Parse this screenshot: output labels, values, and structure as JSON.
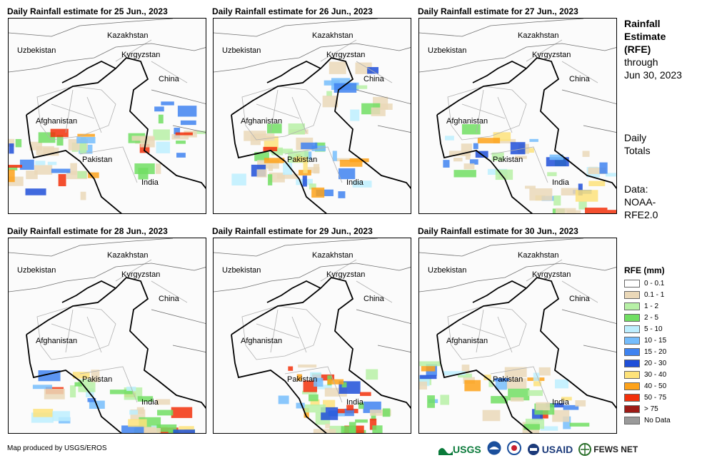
{
  "panels": [
    {
      "title": "Daily Rainfall estimate for 25 Jun., 2023",
      "labels": [
        "Kazakhstan",
        "Uzbekistan",
        "Kyrgyzstan",
        "China",
        "Afghanistan",
        "Pakistan",
        "India"
      ]
    },
    {
      "title": "Daily Rainfall estimate for 26 Jun., 2023",
      "labels": [
        "Kazakhstan",
        "Uzbekistan",
        "Kyrgyzstan",
        "China",
        "Afghanistan",
        "Pakistan",
        "India"
      ]
    },
    {
      "title": "Daily Rainfall estimate for 27 Jun., 2023",
      "labels": [
        "Kazakhstan",
        "Uzbekistan",
        "Kyrgyzstan",
        "China",
        "Afghanistan",
        "Pakistan",
        "India"
      ]
    },
    {
      "title": "Daily Rainfall estimate for 28 Jun., 2023",
      "labels": [
        "Kazakhstan",
        "Uzbekistan",
        "Kyrgyzstan",
        "China",
        "Afghanistan",
        "Pakistan",
        "India"
      ]
    },
    {
      "title": "Daily Rainfall estimate for 29 Jun., 2023",
      "labels": [
        "Kazakhstan",
        "Uzbekistan",
        "Kyrgyzstan",
        "China",
        "Afghanistan",
        "Pakistan",
        "India"
      ]
    },
    {
      "title": "Daily Rainfall estimate for 30 Jun., 2023",
      "labels": [
        "Kazakhstan",
        "Uzbekistan",
        "Kyrgyzstan",
        "China",
        "Afghanistan",
        "Pakistan",
        "India"
      ]
    }
  ],
  "side": {
    "title_l1": "Rainfall",
    "title_l2": "Estimate",
    "title_l3": "(RFE)",
    "through": "through",
    "date": "Jun 30, 2023",
    "totals_l1": "Daily",
    "totals_l2": "Totals",
    "data_l1": "Data:",
    "data_l2": "NOAA-",
    "data_l3": "RFE2.0"
  },
  "legend": {
    "title": "RFE (mm)",
    "items": [
      {
        "label": "0 - 0.1",
        "color": "#ffffff"
      },
      {
        "label": "0.1 - 1",
        "color": "#ead8b8"
      },
      {
        "label": "1 - 2",
        "color": "#b7f0a6"
      },
      {
        "label": "2 - 5",
        "color": "#71de63"
      },
      {
        "label": "5 - 10",
        "color": "#bdeefe"
      },
      {
        "label": "10 - 15",
        "color": "#75bdfc"
      },
      {
        "label": "15 - 20",
        "color": "#3f83f0"
      },
      {
        "label": "20 - 30",
        "color": "#1f4fd8"
      },
      {
        "label": "30 - 40",
        "color": "#fde27a"
      },
      {
        "label": "40 - 50",
        "color": "#fda21a"
      },
      {
        "label": "50 - 75",
        "color": "#f2300b"
      },
      {
        "label": "> 75",
        "color": "#9d1a16"
      },
      {
        "label": "No Data",
        "color": "#9a9a9a"
      }
    ]
  },
  "footer": {
    "credit": "Map produced by USGS/EROS",
    "logos": [
      "USGS",
      "USAID",
      "FEWS NET"
    ]
  }
}
